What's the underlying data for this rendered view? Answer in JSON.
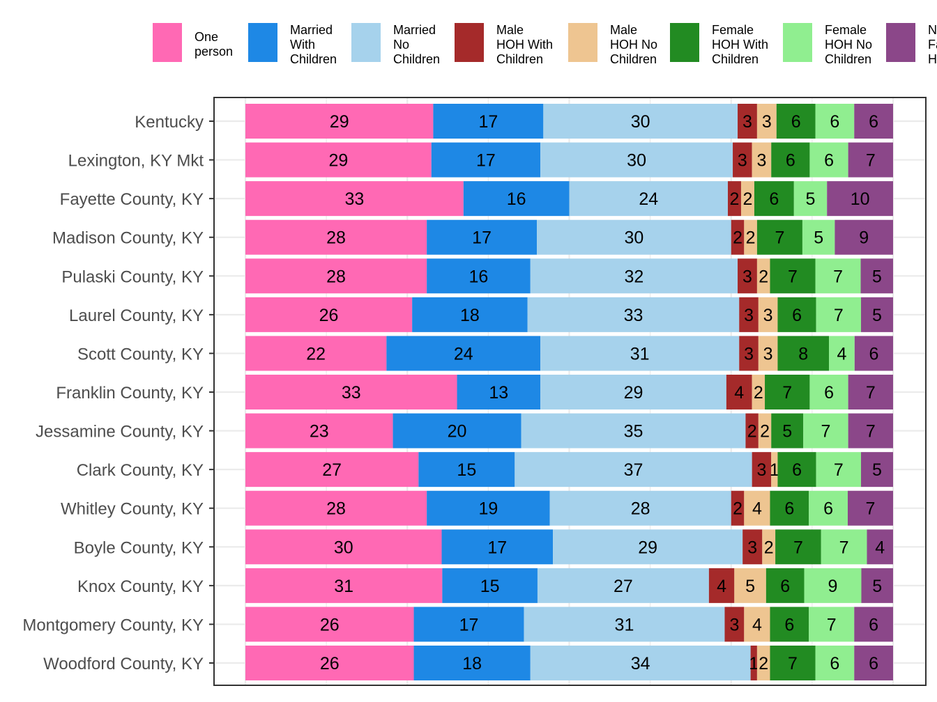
{
  "chart_data": {
    "type": "bar",
    "orientation": "horizontal",
    "stacked": true,
    "percent": true,
    "grid": true,
    "legend_position": "top",
    "series": [
      {
        "name": "One person",
        "color": "#FF69B4",
        "values": [
          29,
          29,
          33,
          28,
          28,
          26,
          22,
          33,
          23,
          27,
          28,
          30,
          31,
          26,
          26
        ]
      },
      {
        "name": "Married With Children",
        "color": "#1E88E5",
        "values": [
          17,
          17,
          16,
          17,
          16,
          18,
          24,
          13,
          20,
          15,
          19,
          17,
          15,
          17,
          18
        ]
      },
      {
        "name": "Married No Children",
        "color": "#A6D2EC",
        "values": [
          30,
          30,
          24,
          30,
          32,
          33,
          31,
          29,
          35,
          37,
          28,
          29,
          27,
          31,
          34
        ]
      },
      {
        "name": "Male HOH With Children",
        "color": "#A52A2A",
        "values": [
          3,
          3,
          2,
          2,
          3,
          3,
          3,
          4,
          2,
          3,
          2,
          3,
          4,
          3,
          1
        ]
      },
      {
        "name": "Male HOH No Children",
        "color": "#EEC591",
        "values": [
          3,
          3,
          2,
          2,
          2,
          3,
          3,
          2,
          2,
          1,
          4,
          2,
          5,
          4,
          2
        ]
      },
      {
        "name": "Female HOH With Children",
        "color": "#228B22",
        "values": [
          6,
          6,
          6,
          7,
          7,
          6,
          8,
          7,
          5,
          6,
          6,
          7,
          6,
          6,
          7
        ]
      },
      {
        "name": "Female HOH No Children",
        "color": "#90EE90",
        "values": [
          6,
          6,
          5,
          5,
          7,
          7,
          4,
          6,
          7,
          7,
          6,
          7,
          9,
          7,
          6
        ]
      },
      {
        "name": "Non Family HOH",
        "color": "#8B4789",
        "values": [
          6,
          7,
          10,
          9,
          5,
          5,
          6,
          7,
          7,
          5,
          7,
          4,
          5,
          6,
          6
        ]
      }
    ],
    "categories": [
      "Kentucky",
      "Lexington, KY Mkt",
      "Fayette County, KY",
      "Madison County, KY",
      "Pulaski County, KY",
      "Laurel County, KY",
      "Scott County, KY",
      "Franklin County, KY",
      "Jessamine County, KY",
      "Clark County, KY",
      "Whitley County, KY",
      "Boyle County, KY",
      "Knox County, KY",
      "Montgomery County, KY",
      "Woodford County, KY"
    ],
    "xlim": [
      0,
      100
    ]
  }
}
